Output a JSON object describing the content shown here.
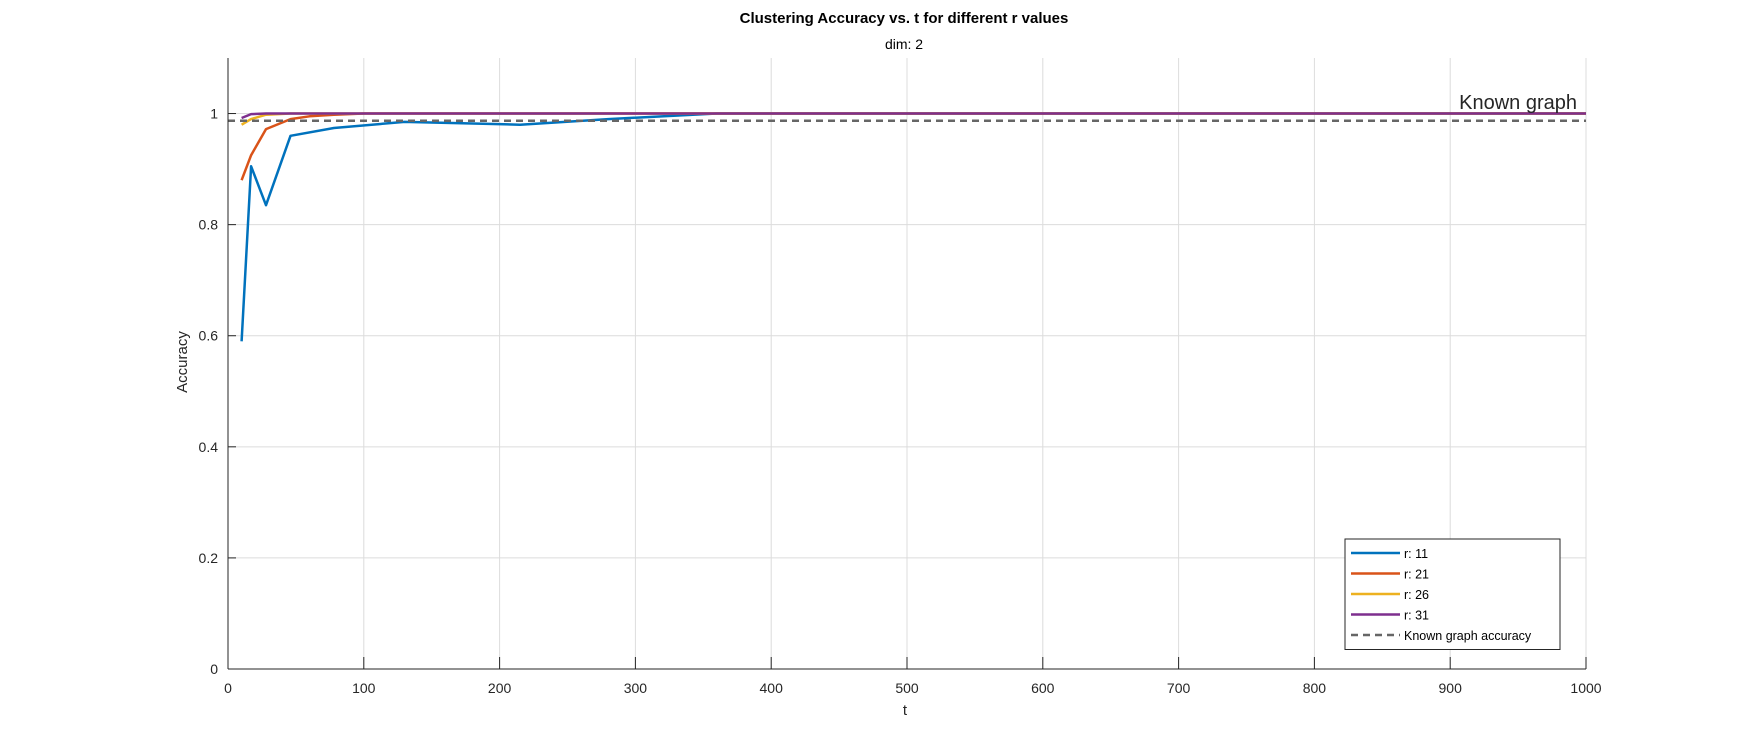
{
  "chart_data": {
    "type": "line",
    "title": "Clustering Accuracy vs. t for different r values",
    "subtitle": "dim: 2",
    "xlabel": "t",
    "ylabel": "Accuracy",
    "xlim": [
      0,
      1000
    ],
    "ylim": [
      0,
      1.1
    ],
    "xticks": [
      0,
      100,
      200,
      300,
      400,
      500,
      600,
      700,
      800,
      900,
      1000
    ],
    "yticks": [
      0,
      0.2,
      0.4,
      0.6,
      0.8,
      1
    ],
    "ytick_labels": [
      "0",
      "0.2",
      "0.4",
      "0.6",
      "0.8",
      "1"
    ],
    "grid": true,
    "legend_position": "bottom-right",
    "annotation": "Known graph",
    "series": [
      {
        "name": "r: 11",
        "color": "#0072BD",
        "style": "solid",
        "x": [
          10,
          17,
          28,
          46,
          78,
          130,
          215,
          280,
          360,
          1000
        ],
        "y": [
          0.59,
          0.905,
          0.835,
          0.96,
          0.974,
          0.985,
          0.98,
          0.99,
          1.0,
          1.0
        ]
      },
      {
        "name": "r: 21",
        "color": "#D95319",
        "style": "solid",
        "x": [
          10,
          17,
          28,
          46,
          60,
          78,
          100,
          1000
        ],
        "y": [
          0.88,
          0.925,
          0.972,
          0.99,
          0.995,
          0.998,
          1.0,
          1.0
        ]
      },
      {
        "name": "r: 26",
        "color": "#EDB120",
        "style": "solid",
        "x": [
          10,
          17,
          28,
          46,
          1000
        ],
        "y": [
          0.98,
          0.99,
          0.998,
          1.0,
          1.0
        ]
      },
      {
        "name": "r: 31",
        "color": "#7E2F8E",
        "style": "solid",
        "x": [
          10,
          17,
          28,
          1000
        ],
        "y": [
          0.992,
          0.999,
          1.0,
          1.0
        ]
      },
      {
        "name": "Known graph accuracy",
        "color": "#666666",
        "style": "dashed",
        "x": [
          0,
          1000
        ],
        "y": [
          0.987,
          0.987
        ]
      }
    ]
  }
}
